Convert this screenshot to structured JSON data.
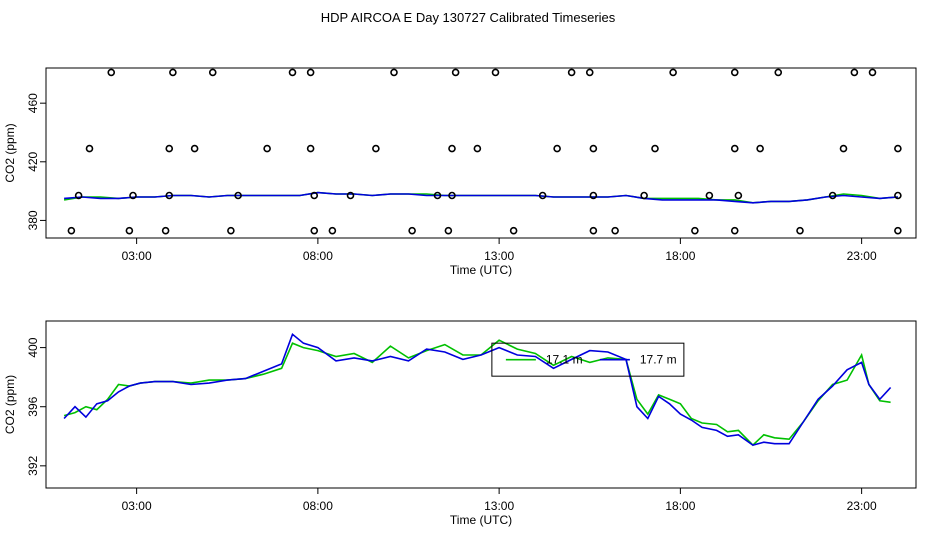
{
  "title": "HDP AIRCOA E  Day 130727  Calibrated Timeseries",
  "colors": {
    "green_series": "#00c000",
    "blue_series": "#0000dd",
    "axes": "#000000"
  },
  "chart_data": [
    {
      "type": "line",
      "panel": "top",
      "xlabel": "Time (UTC)",
      "ylabel": "CO2 (ppm)",
      "xlim": [
        0.5,
        24.5
      ],
      "ylim": [
        368,
        484
      ],
      "xticks": [
        3,
        8,
        13,
        18,
        23
      ],
      "xtick_labels": [
        "03:00",
        "08:00",
        "13:00",
        "18:00",
        "23:00"
      ],
      "yticks": [
        380,
        420,
        460
      ],
      "ytick_labels": [
        "380",
        "420",
        "460"
      ],
      "grid": false,
      "series": [
        {
          "color": "green",
          "x": [
            1,
            1.5,
            2,
            2.5,
            3,
            3.5,
            4,
            4.5,
            5,
            5.5,
            6,
            6.5,
            7,
            7.5,
            8,
            8.5,
            9,
            9.5,
            10,
            10.5,
            11,
            11.5,
            12,
            12.5,
            13,
            13.5,
            14,
            14.5,
            15,
            15.5,
            16,
            16.5,
            17,
            17.5,
            18,
            18.5,
            19,
            19.5,
            20,
            20.5,
            21,
            21.5,
            22,
            22.5,
            23,
            23.5,
            24
          ],
          "y": [
            394,
            396,
            396,
            395,
            396,
            396,
            397,
            397,
            396,
            397,
            397,
            397,
            397,
            397,
            399,
            398,
            398,
            397,
            398,
            398,
            398,
            397,
            397,
            397,
            397,
            397,
            397,
            396,
            396,
            396,
            396,
            397,
            395,
            395,
            395,
            395,
            394,
            394,
            392,
            393,
            393,
            394,
            396,
            398,
            397,
            395,
            396
          ]
        },
        {
          "color": "blue",
          "x": [
            1,
            1.5,
            2,
            2.5,
            3,
            3.5,
            4,
            4.5,
            5,
            5.5,
            6,
            6.5,
            7,
            7.5,
            8,
            8.5,
            9,
            9.5,
            10,
            10.5,
            11,
            11.5,
            12,
            12.5,
            13,
            13.5,
            14,
            14.5,
            15,
            15.5,
            16,
            16.5,
            17,
            17.5,
            18,
            18.5,
            19,
            19.5,
            20,
            20.5,
            21,
            21.5,
            22,
            22.5,
            23,
            23.5,
            24
          ],
          "y": [
            395,
            396,
            395,
            395,
            396,
            396,
            397,
            397,
            396,
            397,
            397,
            397,
            397,
            397,
            399,
            398,
            398,
            397,
            398,
            398,
            397,
            397,
            397,
            397,
            397,
            397,
            397,
            396,
            396,
            396,
            396,
            397,
            395,
            394,
            394,
            394,
            394,
            393,
            392,
            393,
            393,
            394,
            396,
            397,
            396,
            395,
            396
          ]
        },
        {
          "name": "points",
          "style": "open-circle",
          "x": [
            2.3,
            4.0,
            5.1,
            7.3,
            7.8,
            10.1,
            11.8,
            12.9,
            15.0,
            15.5,
            17.8,
            19.5,
            20.7,
            22.8,
            23.3,
            1.7,
            3.9,
            4.6,
            6.6,
            7.8,
            9.6,
            11.7,
            12.4,
            14.6,
            15.6,
            17.3,
            19.5,
            20.2,
            22.5,
            24.0,
            1.4,
            2.9,
            3.9,
            5.8,
            7.9,
            8.9,
            11.3,
            11.7,
            14.2,
            15.6,
            17.0,
            18.8,
            19.6,
            22.2,
            24.0,
            1.2,
            2.8,
            3.8,
            5.6,
            7.9,
            8.4,
            10.6,
            11.6,
            13.4,
            15.6,
            16.2,
            18.4,
            19.5,
            21.3,
            24.0
          ],
          "y": [
            481,
            481,
            481,
            481,
            481,
            481,
            481,
            481,
            481,
            481,
            481,
            481,
            481,
            481,
            481,
            429,
            429,
            429,
            429,
            429,
            429,
            429,
            429,
            429,
            429,
            429,
            429,
            429,
            429,
            429,
            397,
            397,
            397,
            397,
            397,
            397,
            397,
            397,
            397,
            397,
            397,
            397,
            397,
            397,
            397,
            373,
            373,
            373,
            373,
            373,
            373,
            373,
            373,
            373,
            373,
            373,
            373,
            373,
            373,
            373
          ]
        }
      ]
    },
    {
      "type": "line",
      "panel": "bottom",
      "xlabel": "Time (UTC)",
      "ylabel": "CO2 (ppm)",
      "xlim": [
        0.5,
        24.5
      ],
      "ylim": [
        390.5,
        401.8
      ],
      "xticks": [
        3,
        8,
        13,
        18,
        23
      ],
      "xtick_labels": [
        "03:00",
        "08:00",
        "13:00",
        "18:00",
        "23:00"
      ],
      "yticks": [
        392,
        396,
        400
      ],
      "ytick_labels": [
        "392",
        "396",
        "400"
      ],
      "grid": false,
      "legend": {
        "placement": "top-center",
        "entries": [
          "17.1 m",
          "17.7 m"
        ]
      },
      "series": [
        {
          "name": "17.1 m",
          "color": "green",
          "x": [
            1,
            1.3,
            1.6,
            1.9,
            2.2,
            2.5,
            2.8,
            3.1,
            3.5,
            4,
            4.5,
            5,
            5.5,
            6,
            6.5,
            7,
            7.3,
            7.6,
            8,
            8.5,
            9,
            9.5,
            10,
            10.5,
            11,
            11.5,
            12,
            12.5,
            13,
            13.5,
            14,
            14.5,
            15,
            15.5,
            16,
            16.5,
            16.8,
            17.1,
            17.4,
            17.7,
            18,
            18.3,
            18.6,
            19,
            19.3,
            19.6,
            20,
            20.3,
            20.6,
            21,
            21.4,
            21.8,
            22.2,
            22.6,
            23,
            23.2,
            23.5,
            23.8
          ],
          "y": [
            395.4,
            395.6,
            396.0,
            395.8,
            396.5,
            397.5,
            397.4,
            397.6,
            397.7,
            397.7,
            397.6,
            397.8,
            397.8,
            397.9,
            398.2,
            398.6,
            400.3,
            400.0,
            399.8,
            399.4,
            399.6,
            399.0,
            400.1,
            399.3,
            399.8,
            400.2,
            399.5,
            399.5,
            400.5,
            399.9,
            399.6,
            398.8,
            399.4,
            399.0,
            399.3,
            399.2,
            396.5,
            395.5,
            396.8,
            396.5,
            396.2,
            395.2,
            394.9,
            394.8,
            394.3,
            394.4,
            393.4,
            394.1,
            393.9,
            393.8,
            395.0,
            396.4,
            397.5,
            397.8,
            399.5,
            397.5,
            396.4,
            396.3
          ]
        },
        {
          "name": "17.7 m",
          "color": "blue",
          "x": [
            1,
            1.3,
            1.6,
            1.9,
            2.2,
            2.5,
            2.8,
            3.1,
            3.5,
            4,
            4.5,
            5,
            5.5,
            6,
            6.5,
            7,
            7.3,
            7.6,
            8,
            8.5,
            9,
            9.5,
            10,
            10.5,
            11,
            11.5,
            12,
            12.5,
            13,
            13.5,
            14,
            14.5,
            15,
            15.5,
            16,
            16.5,
            16.8,
            17.1,
            17.4,
            17.7,
            18,
            18.3,
            18.6,
            19,
            19.3,
            19.6,
            20,
            20.3,
            20.6,
            21,
            21.4,
            21.8,
            22.2,
            22.6,
            23,
            23.2,
            23.5,
            23.8
          ],
          "y": [
            395.2,
            396.0,
            395.3,
            396.2,
            396.4,
            397.0,
            397.4,
            397.6,
            397.7,
            397.7,
            397.5,
            397.6,
            397.8,
            397.9,
            398.4,
            398.9,
            400.9,
            400.3,
            400.0,
            399.1,
            399.3,
            399.1,
            399.4,
            399.1,
            399.9,
            399.7,
            399.2,
            399.5,
            400.0,
            399.5,
            399.4,
            398.6,
            399.2,
            399.8,
            399.7,
            399.2,
            396.0,
            395.2,
            396.7,
            396.2,
            395.5,
            395.1,
            394.6,
            394.4,
            394.0,
            394.1,
            393.4,
            393.6,
            393.5,
            393.5,
            395.0,
            396.5,
            397.4,
            398.5,
            399.0,
            397.5,
            396.5,
            397.3
          ]
        }
      ]
    }
  ]
}
